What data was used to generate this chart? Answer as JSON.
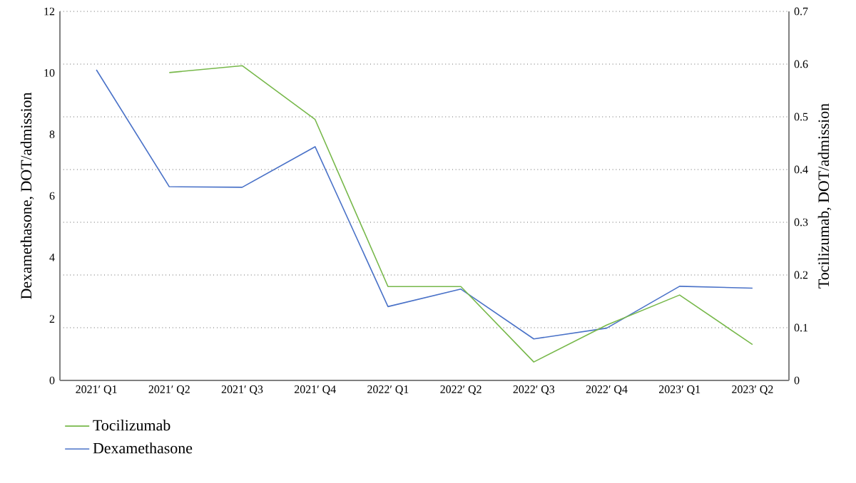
{
  "chart_data": {
    "type": "line",
    "ylabel": "Dexamethasone, DOT/admission",
    "y2label": "Tocilizumab, DOT/admission",
    "categories": [
      "2021′ Q1",
      "2021′ Q2",
      "2021′ Q3",
      "2021′ Q4",
      "2022′ Q1",
      "2022′ Q2",
      "2022′ Q3",
      "2022′ Q4",
      "2023′ Q1",
      "2023′ Q2"
    ],
    "series": [
      {
        "name": "Tocilizumab",
        "color": "#77b84a",
        "axis": "y2",
        "values": [
          null,
          0.584,
          0.597,
          0.495,
          0.178,
          0.178,
          0.035,
          0.105,
          0.162,
          0.068
        ]
      },
      {
        "name": "Dexamethasone",
        "color": "#4a72c8",
        "values": [
          10.1,
          6.3,
          6.28,
          7.6,
          2.4,
          2.97,
          1.35,
          1.7,
          3.06,
          3.0
        ]
      }
    ],
    "ylim": [
      0,
      12
    ],
    "yticks": [
      0,
      2,
      4,
      6,
      8,
      10,
      12
    ],
    "y2lim": [
      0,
      0.7
    ],
    "y2ticks": [
      0,
      0.1,
      0.2,
      0.3,
      0.4,
      0.5,
      0.6,
      0.7
    ],
    "grid": "y2",
    "legend": "bottom left",
    "line_style": "solid",
    "marker": "none"
  }
}
